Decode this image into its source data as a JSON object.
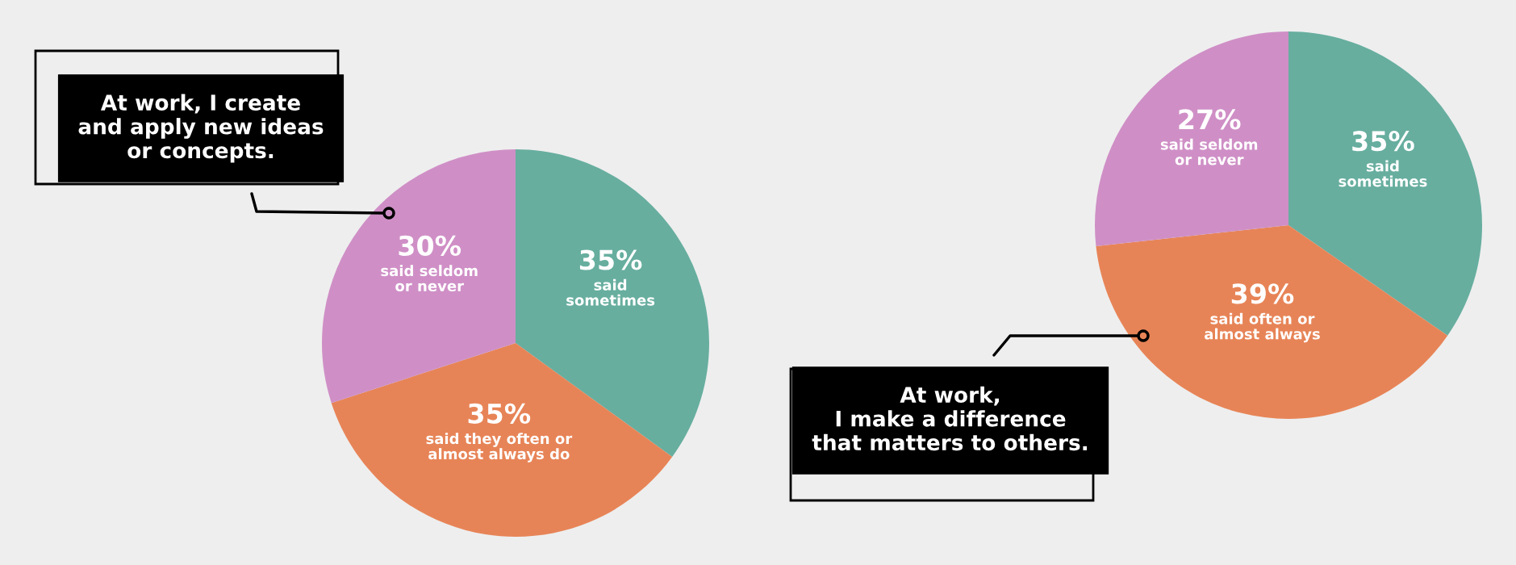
{
  "chart_data": [
    {
      "type": "pie",
      "title": "At work, I create\nand apply new ideas\nor concepts.",
      "categories": [
        "said\nsometimes",
        "said they often or\nalmost always do",
        "said seldom\nor never"
      ],
      "values": [
        35,
        35,
        30
      ],
      "value_labels": [
        "35%",
        "35%",
        "30%"
      ],
      "colors": [
        "#67ae9f",
        "#e78457",
        "#cf8fc6"
      ]
    },
    {
      "type": "pie",
      "title": "At work,\nI make a difference\nthat matters to others.",
      "categories": [
        "said\nsometimes",
        "said often or\nalmost always",
        "said seldom\nor never"
      ],
      "values": [
        35,
        39,
        27
      ],
      "value_labels": [
        "35%",
        "39%",
        "27%"
      ],
      "colors": [
        "#67ae9f",
        "#e78457",
        "#cf8fc6"
      ]
    }
  ]
}
